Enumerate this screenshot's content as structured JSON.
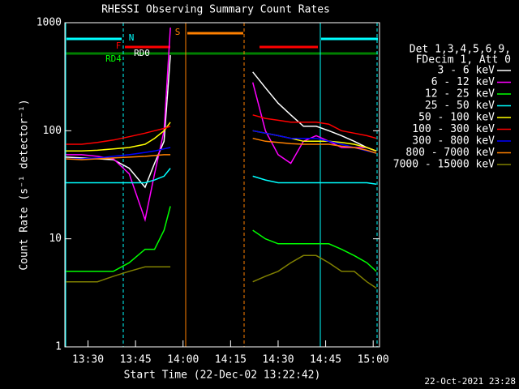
{
  "chart_data": {
    "type": "line",
    "title": "RHESSI Observing Summary Count Rates",
    "xlabel": "Start Time (22-Dec-02 13:22:42)",
    "ylabel": "Count Rate (s⁻¹ detector⁻¹)",
    "legend_header": [
      "Det 1,3,4,5,6,9,",
      "FDecim 1, Att 0"
    ],
    "annotations": [
      "N",
      "F",
      "RD0",
      "RD4",
      "S"
    ],
    "footer": "22-Oct-2021 23:28",
    "log_y": true,
    "xlim": [
      802.7,
      902
    ],
    "xticks": [
      {
        "value": 810,
        "label": "13:30"
      },
      {
        "value": 825,
        "label": "13:45"
      },
      {
        "value": 840,
        "label": "14:00"
      },
      {
        "value": 855,
        "label": "14:15"
      },
      {
        "value": 870,
        "label": "14:30"
      },
      {
        "value": 885,
        "label": "14:45"
      },
      {
        "value": 900,
        "label": "15:00"
      }
    ],
    "ylim": [
      1,
      1000
    ],
    "yticks": [
      1,
      10,
      100,
      1000
    ],
    "x": [
      803,
      808,
      813,
      818,
      823,
      828,
      831,
      834,
      836,
      845,
      862,
      866,
      870,
      874,
      878,
      882,
      886,
      890,
      894,
      898,
      901
    ],
    "series": [
      {
        "name": "3 - 6 keV",
        "color": "#ffffff",
        "values": [
          57,
          56,
          55,
          54,
          45,
          30,
          50,
          80,
          500,
          null,
          350,
          250,
          180,
          140,
          110,
          110,
          100,
          90,
          80,
          70,
          65
        ]
      },
      {
        "name": "6 - 12 keV",
        "color": "#ff00ff",
        "values": [
          60,
          60,
          58,
          55,
          40,
          15,
          40,
          100,
          900,
          null,
          280,
          100,
          60,
          50,
          80,
          90,
          80,
          70,
          70,
          70,
          65
        ]
      },
      {
        "name": "12 - 25 keV",
        "color": "#00ff00",
        "values": [
          5,
          5,
          5,
          5,
          6,
          8,
          8,
          12,
          20,
          null,
          12,
          10,
          9,
          9,
          9,
          9,
          9,
          8,
          7,
          6,
          5
        ]
      },
      {
        "name": "25 - 50 keV",
        "color": "#00ffff",
        "values": [
          33,
          33,
          33,
          33,
          33,
          33,
          35,
          38,
          45,
          null,
          38,
          35,
          33,
          33,
          33,
          33,
          33,
          33,
          33,
          33,
          32
        ]
      },
      {
        "name": "50 - 100 keV",
        "color": "#ffff00",
        "values": [
          65,
          65,
          66,
          68,
          70,
          75,
          85,
          100,
          120,
          null,
          100,
          95,
          90,
          85,
          80,
          80,
          80,
          78,
          75,
          70,
          65
        ]
      },
      {
        "name": "100 - 300 keV",
        "color": "#ff0000",
        "values": [
          75,
          75,
          78,
          82,
          88,
          95,
          100,
          105,
          110,
          null,
          140,
          130,
          125,
          120,
          120,
          120,
          115,
          100,
          95,
          90,
          85
        ]
      },
      {
        "name": "300 - 800 keV",
        "color": "#0000ff",
        "values": [
          55,
          55,
          56,
          58,
          60,
          63,
          65,
          68,
          70,
          null,
          100,
          95,
          90,
          85,
          85,
          85,
          80,
          75,
          70,
          65,
          62
        ]
      },
      {
        "name": "800 - 7000 keV",
        "color": "#ff8000",
        "values": [
          55,
          54,
          55,
          56,
          57,
          58,
          59,
          60,
          60,
          null,
          85,
          80,
          78,
          76,
          75,
          75,
          75,
          72,
          70,
          66,
          62
        ]
      },
      {
        "name": "7000 - 15000 keV",
        "color": "#808000",
        "values": [
          4,
          4,
          4,
          4.5,
          5,
          5.5,
          5.5,
          5.5,
          5.5,
          null,
          4,
          4.5,
          5,
          6,
          7,
          7,
          6,
          5,
          5,
          4,
          3.5
        ]
      }
    ]
  }
}
